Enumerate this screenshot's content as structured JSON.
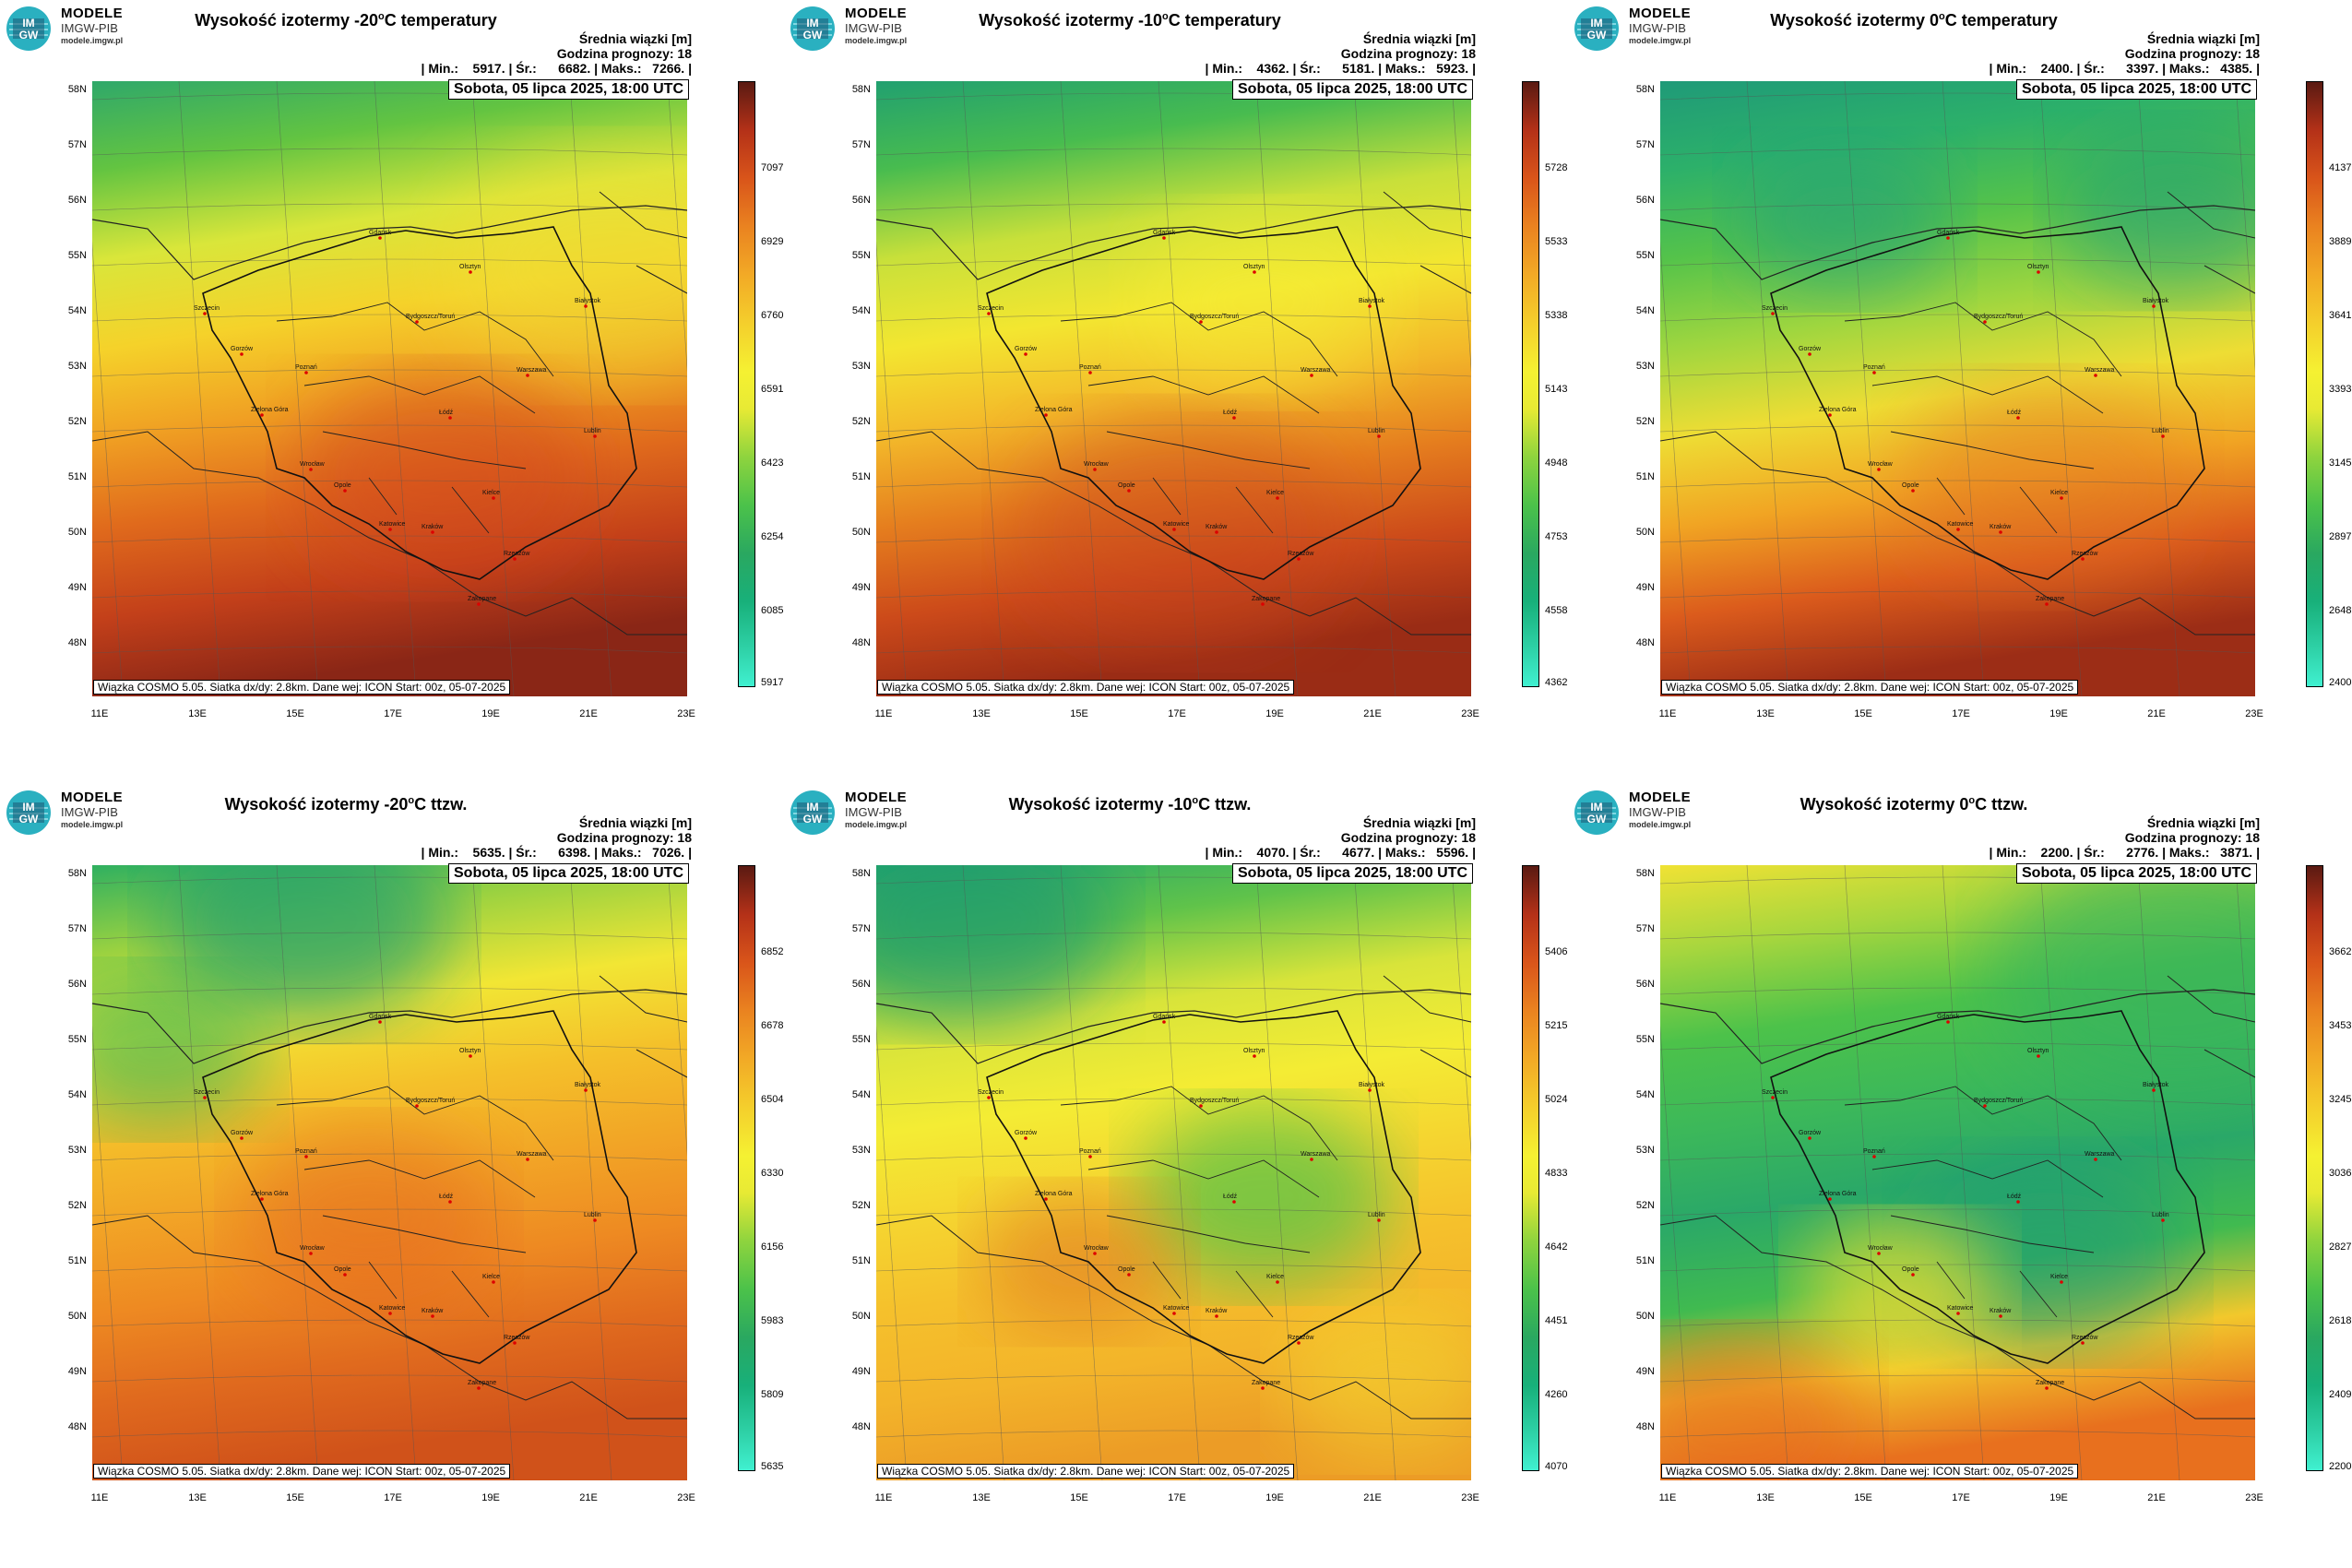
{
  "logo": {
    "line1": "MODELE",
    "line2": "IMGW-PIB",
    "line3": "modele.imgw.pl",
    "mark": "IMGW"
  },
  "common": {
    "info_line1": "Średnia wiązki [m]",
    "info_line2": "Godzina prognozy: 18",
    "date": "Sobota, 05 lipca 2025, 18:00 UTC",
    "footer": "Wiązka COSMO 5.05. Siatka dx/dy: 2.8km. Dane wej: ICON Start: 00z, 05-07-2025",
    "lat_labels": [
      "58N",
      "57N",
      "56N",
      "55N",
      "54N",
      "53N",
      "52N",
      "51N",
      "50N",
      "49N",
      "48N"
    ],
    "lon_labels": [
      "11E",
      "13E",
      "15E",
      "17E",
      "19E",
      "21E",
      "23E"
    ],
    "cities": [
      "Gdańsk",
      "Olsztyn",
      "Białystok",
      "Szczecin",
      "Bydgoszcz/Toruń",
      "Gorzów",
      "Poznań",
      "Warszawa",
      "Zielona Góra",
      "Łódź",
      "Lublin",
      "Wrocław",
      "Opole",
      "Kielce",
      "Katowice",
      "Kraków",
      "Rzeszów",
      "Zakopane"
    ]
  },
  "colors": {
    "green_dark": "#1e9a66",
    "green": "#4cc24a",
    "yellow": "#f4ee32",
    "orange": "#f08a1e",
    "red": "#c7321a",
    "brown": "#5a1a12",
    "cyan": "#40f0d0"
  },
  "panels": [
    {
      "title_a": "Wysokość izotermy -20",
      "title_sup": "o",
      "title_b": "C temperatury",
      "stats": "| Min.:    5917. | Śr.:      6682. | Maks.:   7266. |",
      "cbar": [
        "7097",
        "6929",
        "6760",
        "6591",
        "6423",
        "6254",
        "6085",
        "5917"
      ]
    },
    {
      "title_a": "Wysokość izotermy -10",
      "title_sup": "o",
      "title_b": "C temperatury",
      "stats": "| Min.:    4362. | Śr.:      5181. | Maks.:   5923. |",
      "cbar": [
        "5728",
        "5533",
        "5338",
        "5143",
        "4948",
        "4753",
        "4558",
        "4362"
      ]
    },
    {
      "title_a": "Wysokość izotermy 0",
      "title_sup": "o",
      "title_b": "C temperatury",
      "stats": "| Min.:    2400. | Śr.:      3397. | Maks.:   4385. |",
      "cbar": [
        "4137",
        "3889",
        "3641",
        "3393",
        "3145",
        "2897",
        "2648",
        "2400"
      ]
    },
    {
      "title_a": "Wysokość izotermy -20",
      "title_sup": "o",
      "title_b": "C ttzw.",
      "stats": "| Min.:    5635. | Śr.:      6398. | Maks.:   7026. |",
      "cbar": [
        "6852",
        "6678",
        "6504",
        "6330",
        "6156",
        "5983",
        "5809",
        "5635"
      ]
    },
    {
      "title_a": "Wysokość izotermy -10",
      "title_sup": "o",
      "title_b": "C ttzw.",
      "stats": "| Min.:    4070. | Śr.:      4677. | Maks.:   5596. |",
      "cbar": [
        "5406",
        "5215",
        "5024",
        "4833",
        "4642",
        "4451",
        "4260",
        "4070"
      ]
    },
    {
      "title_a": "Wysokość izotermy 0",
      "title_sup": "o",
      "title_b": "C ttzw.",
      "stats": "| Min.:    2200. | Śr.:      2776. | Maks.:   3871. |",
      "cbar": [
        "3662",
        "3453",
        "3245",
        "3036",
        "2827",
        "2618",
        "2409",
        "2200"
      ]
    }
  ]
}
